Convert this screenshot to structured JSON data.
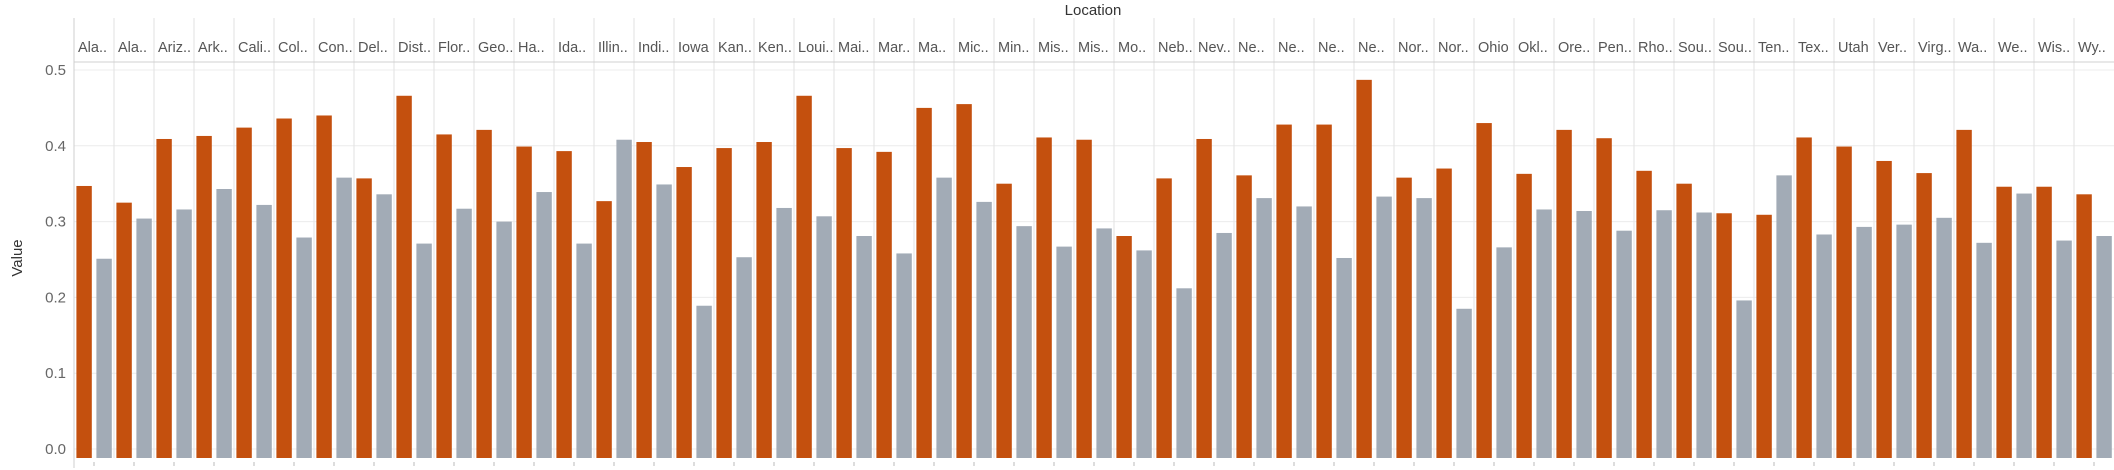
{
  "chart_data": {
    "type": "bar",
    "title": "",
    "xlabel": "Location",
    "ylabel": "Value",
    "ylim": [
      0,
      0.5
    ],
    "yticks": [
      "0.0",
      "0.1",
      "0.2",
      "0.3",
      "0.4",
      "0.5"
    ],
    "grid": true,
    "colors": {
      "bar_a": "#c4500e",
      "bar_b": "#a2abb6"
    },
    "categories": [
      "Ala..",
      "Ala..",
      "Ariz..",
      "Ark..",
      "Cali..",
      "Col..",
      "Con..",
      "Del..",
      "Dist..",
      "Flor..",
      "Geo..",
      "Ha..",
      "Ida..",
      "Illin..",
      "Indi..",
      "Iowa",
      "Kan..",
      "Ken..",
      "Loui..",
      "Mai..",
      "Mar..",
      "Ma..",
      "Mic..",
      "Min..",
      "Mis..",
      "Mis..",
      "Mo..",
      "Neb..",
      "Nev..",
      "Ne..",
      "Ne..",
      "Ne..",
      "Ne..",
      "Nor..",
      "Nor..",
      "Ohio",
      "Okl..",
      "Ore..",
      "Pen..",
      "Rho..",
      "Sou..",
      "Sou..",
      "Ten..",
      "Tex..",
      "Utah",
      "Ver..",
      "Virg..",
      "Wa..",
      "We..",
      "Wis..",
      "Wy.."
    ],
    "series": [
      {
        "values": [
          0.347,
          0.325,
          0.409,
          0.413,
          0.424,
          0.436,
          0.44,
          0.357,
          0.466,
          0.415,
          0.421,
          0.399,
          0.393,
          0.327,
          0.405,
          0.372,
          0.397,
          0.405,
          0.466,
          0.397,
          0.392,
          0.45,
          0.455,
          0.35,
          0.411,
          0.408,
          0.281,
          0.357,
          0.409,
          0.361,
          0.428,
          0.428,
          0.487,
          0.358,
          0.37,
          0.43,
          0.363,
          0.421,
          0.41,
          0.367,
          0.35,
          0.311,
          0.309,
          0.411,
          0.399,
          0.38,
          0.364,
          0.421,
          0.346,
          0.346,
          0.336
        ]
      },
      {
        "values": [
          0.251,
          0.304,
          0.316,
          0.343,
          0.322,
          0.279,
          0.358,
          0.336,
          0.271,
          0.317,
          0.3,
          0.339,
          0.271,
          0.408,
          0.349,
          0.189,
          0.253,
          0.318,
          0.307,
          0.281,
          0.258,
          0.358,
          0.326,
          0.294,
          0.267,
          0.291,
          0.262,
          0.212,
          0.285,
          0.331,
          0.32,
          0.252,
          0.333,
          0.331,
          0.185,
          0.266,
          0.316,
          0.314,
          0.288,
          0.315,
          0.312,
          0.196,
          0.361,
          0.283,
          0.293,
          0.296,
          0.305,
          0.272,
          0.337,
          0.275,
          0.281
        ]
      }
    ]
  }
}
